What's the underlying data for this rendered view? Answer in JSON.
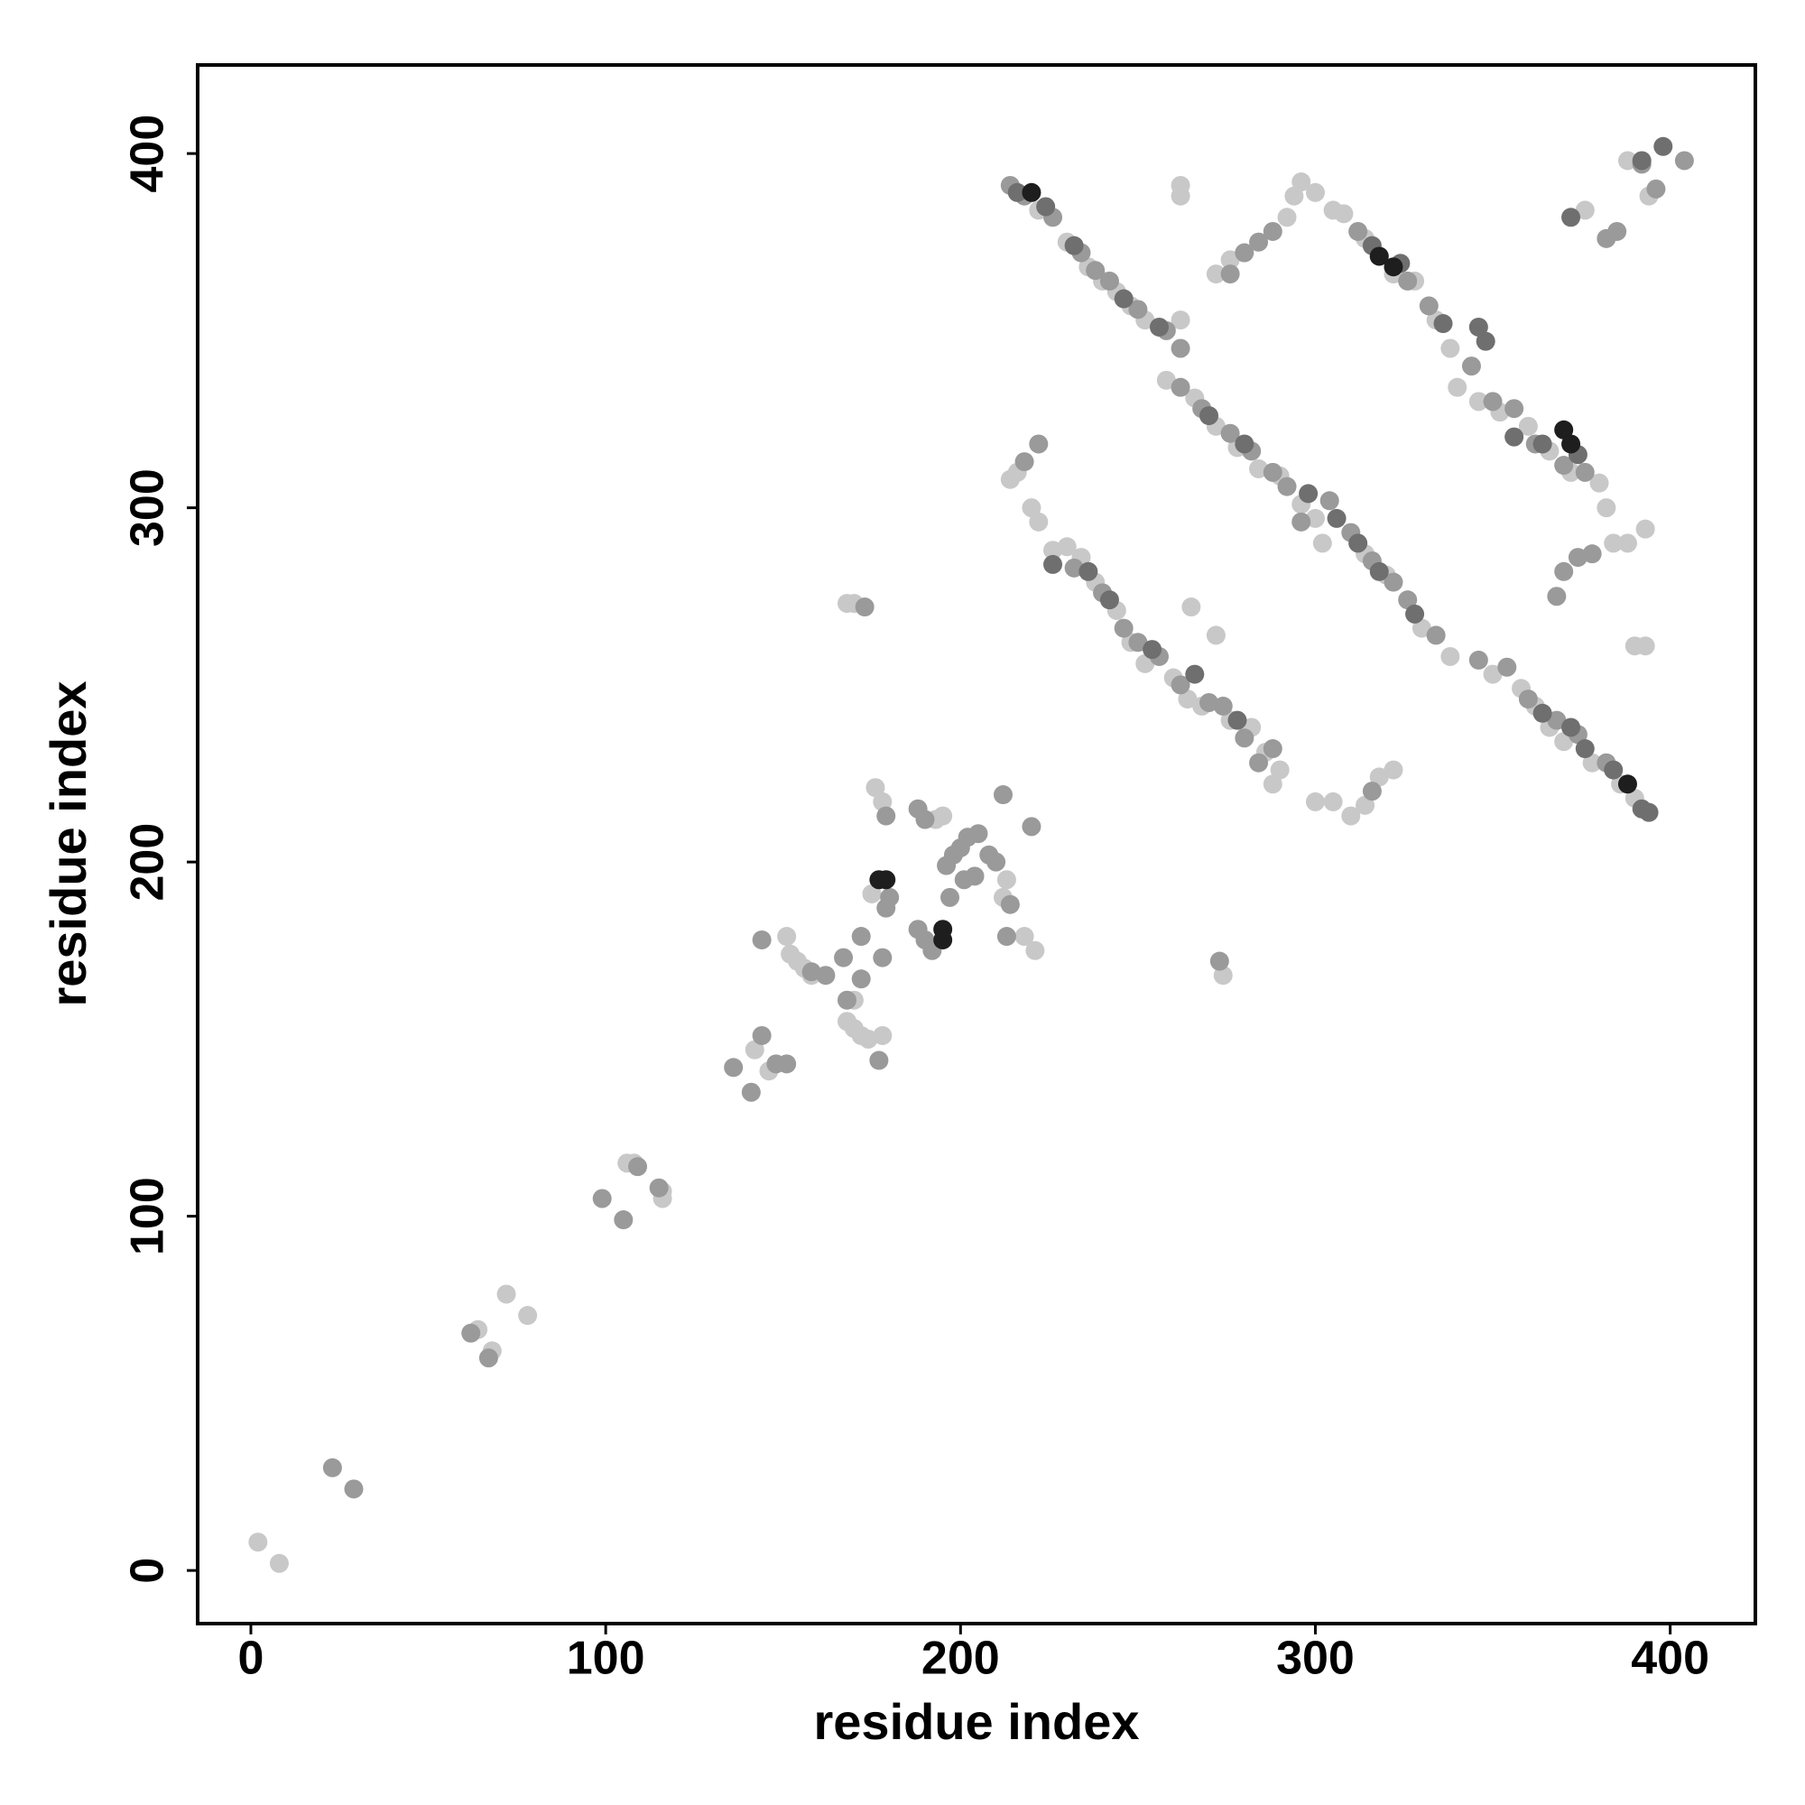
{
  "chart_data": {
    "type": "scatter",
    "xlabel": "residue index",
    "ylabel": "residue index",
    "xlim": [
      -15,
      424
    ],
    "ylim": [
      -15,
      425
    ],
    "xticks": [
      0,
      100,
      200,
      300,
      400
    ],
    "yticks": [
      0,
      100,
      200,
      300,
      400
    ],
    "series": [
      {
        "color": "#c8c8c8",
        "x": [
          2,
          8,
          64,
          68,
          72,
          78,
          106,
          108,
          116,
          116,
          142,
          146,
          151,
          152,
          154,
          156,
          158,
          168,
          170,
          172,
          174,
          178,
          170,
          175,
          176,
          178,
          193,
          195,
          213,
          212,
          218,
          221,
          168,
          170,
          274,
          222,
          230,
          236,
          240,
          244,
          248,
          252,
          262,
          258,
          266,
          272,
          278,
          284,
          290,
          296,
          300,
          302,
          314,
          320,
          330,
          338,
          350,
          358,
          362,
          366,
          370,
          378,
          386,
          390,
          308,
          314,
          322,
          328,
          334,
          338,
          340,
          346,
          352,
          360,
          366,
          372,
          380,
          382,
          226,
          230,
          234,
          238,
          244,
          248,
          252,
          260,
          264,
          268,
          276,
          282,
          286,
          290,
          288,
          214,
          216,
          220,
          222,
          272,
          276,
          292,
          294,
          296,
          300,
          305,
          300,
          305,
          310,
          314,
          318,
          322,
          384,
          388,
          393,
          390,
          393,
          376,
          388,
          394,
          262,
          262,
          265,
          272
        ],
        "y": [
          8,
          2,
          68,
          62,
          78,
          72,
          115,
          115,
          105,
          107,
          147,
          141,
          179,
          174,
          172,
          170,
          168,
          155,
          153,
          151,
          150,
          151,
          161,
          191,
          221,
          217,
          212,
          213,
          195,
          190,
          179,
          175,
          273,
          273,
          168,
          384,
          375,
          368,
          364,
          361,
          357,
          353,
          353,
          336,
          331,
          323,
          317,
          311,
          309,
          301,
          297,
          290,
          287,
          281,
          266,
          258,
          253,
          249,
          244,
          238,
          234,
          228,
          222,
          218,
          383,
          376,
          366,
          364,
          353,
          345,
          334,
          330,
          327,
          323,
          316,
          310,
          307,
          300,
          288,
          289,
          286,
          279,
          271,
          262,
          256,
          252,
          246,
          244,
          240,
          238,
          231,
          226,
          222,
          308,
          310,
          300,
          296,
          366,
          370,
          382,
          388,
          392,
          389,
          384,
          217,
          217,
          213,
          216,
          224,
          226,
          290,
          290,
          294,
          261,
          261,
          384,
          398,
          388,
          391,
          388,
          272,
          264
        ]
      },
      {
        "color": "#9a9a9a",
        "x": [
          23,
          29,
          62,
          67,
          99,
          105,
          109,
          115,
          136,
          141,
          144,
          144,
          148,
          151,
          158,
          162,
          167,
          168,
          172,
          172,
          177,
          178,
          179,
          180,
          179,
          188,
          190,
          188,
          190,
          192,
          197,
          196,
          198,
          200,
          202,
          205,
          201,
          204,
          208,
          210,
          212,
          220,
          214,
          213,
          173,
          273,
          214,
          218,
          226,
          234,
          238,
          242,
          250,
          258,
          262,
          262,
          268,
          276,
          282,
          288,
          292,
          304,
          310,
          316,
          322,
          326,
          334,
          346,
          354,
          360,
          368,
          374,
          382,
          312,
          318,
          326,
          332,
          344,
          350,
          356,
          362,
          370,
          376,
          232,
          240,
          246,
          250,
          256,
          262,
          270,
          274,
          280,
          284,
          288,
          218,
          222,
          276,
          280,
          284,
          288,
          316,
          368,
          370,
          374,
          378,
          382,
          385,
          392,
          396,
          404,
          296
        ],
        "y": [
          29,
          23,
          67,
          60,
          105,
          99,
          114,
          108,
          142,
          135,
          151,
          178,
          143,
          143,
          169,
          168,
          173,
          161,
          167,
          179,
          144,
          173,
          187,
          190,
          213,
          215,
          212,
          181,
          178,
          175,
          190,
          199,
          202,
          204,
          207,
          208,
          195,
          196,
          202,
          200,
          219,
          210,
          188,
          179,
          272,
          172,
          391,
          388,
          382,
          372,
          367,
          364,
          356,
          350,
          345,
          334,
          328,
          321,
          316,
          310,
          306,
          302,
          293,
          285,
          279,
          274,
          264,
          257,
          255,
          246,
          240,
          236,
          228,
          378,
          371,
          364,
          357,
          340,
          330,
          328,
          318,
          312,
          310,
          283,
          276,
          266,
          262,
          258,
          250,
          245,
          244,
          235,
          228,
          232,
          313,
          318,
          366,
          372,
          375,
          378,
          220,
          275,
          282,
          286,
          287,
          376,
          378,
          397,
          390,
          398,
          296
        ]
      },
      {
        "color": "#6f6f6f",
        "x": [
          216,
          224,
          232,
          246,
          256,
          270,
          280,
          298,
          306,
          312,
          318,
          328,
          364,
          372,
          376,
          384,
          392,
          394,
          316,
          324,
          336,
          346,
          348,
          356,
          364,
          374,
          236,
          242,
          254,
          266,
          278,
          372,
          398,
          392,
          226
        ],
        "y": [
          389,
          385,
          374,
          359,
          351,
          326,
          318,
          304,
          297,
          290,
          282,
          270,
          242,
          238,
          232,
          226,
          215,
          214,
          374,
          369,
          352,
          351,
          347,
          320,
          318,
          315,
          282,
          274,
          260,
          253,
          240,
          382,
          402,
          398,
          284
        ]
      },
      {
        "color": "#1e1e1e",
        "x": [
          177,
          179,
          195,
          195,
          220,
          318,
          322,
          370,
          372,
          388
        ],
        "y": [
          195,
          195,
          181,
          178,
          389,
          371,
          368,
          322,
          318,
          222
        ]
      }
    ]
  }
}
